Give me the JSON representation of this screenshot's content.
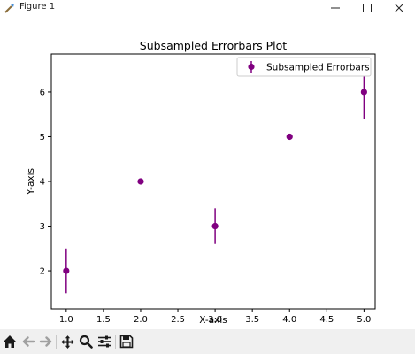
{
  "window": {
    "title": "Figure 1"
  },
  "toolbar": {
    "buttons": [
      "home-icon",
      "back-arrow-icon",
      "forward-arrow-icon",
      "pan-icon",
      "zoom-icon",
      "configure-subplots-icon",
      "save-icon"
    ]
  },
  "chart_data": {
    "type": "scatter",
    "title": "Subsampled Errorbars Plot",
    "xlabel": "X-axis",
    "ylabel": "Y-axis",
    "xlim": [
      0.8,
      5.15
    ],
    "ylim": [
      1.15,
      6.85
    ],
    "xticks": [
      1.0,
      1.5,
      2.0,
      2.5,
      3.0,
      3.5,
      4.0,
      4.5,
      5.0
    ],
    "xtick_labels": [
      "1.0",
      "1.5",
      "2.0",
      "2.5",
      "3.0",
      "3.5",
      "4.0",
      "4.5",
      "5.0"
    ],
    "yticks": [
      2,
      3,
      4,
      5,
      6
    ],
    "ytick_labels": [
      "2",
      "3",
      "4",
      "5",
      "6"
    ],
    "grid": false,
    "legend_position": "top-right",
    "color": "#800080",
    "series": [
      {
        "name": "Subsampled Errorbars",
        "x": [
          1,
          2,
          3,
          4,
          5
        ],
        "y": [
          2,
          4,
          3,
          5,
          6
        ],
        "yerr": [
          0.5,
          0,
          0.4,
          0,
          0.6
        ]
      }
    ]
  }
}
